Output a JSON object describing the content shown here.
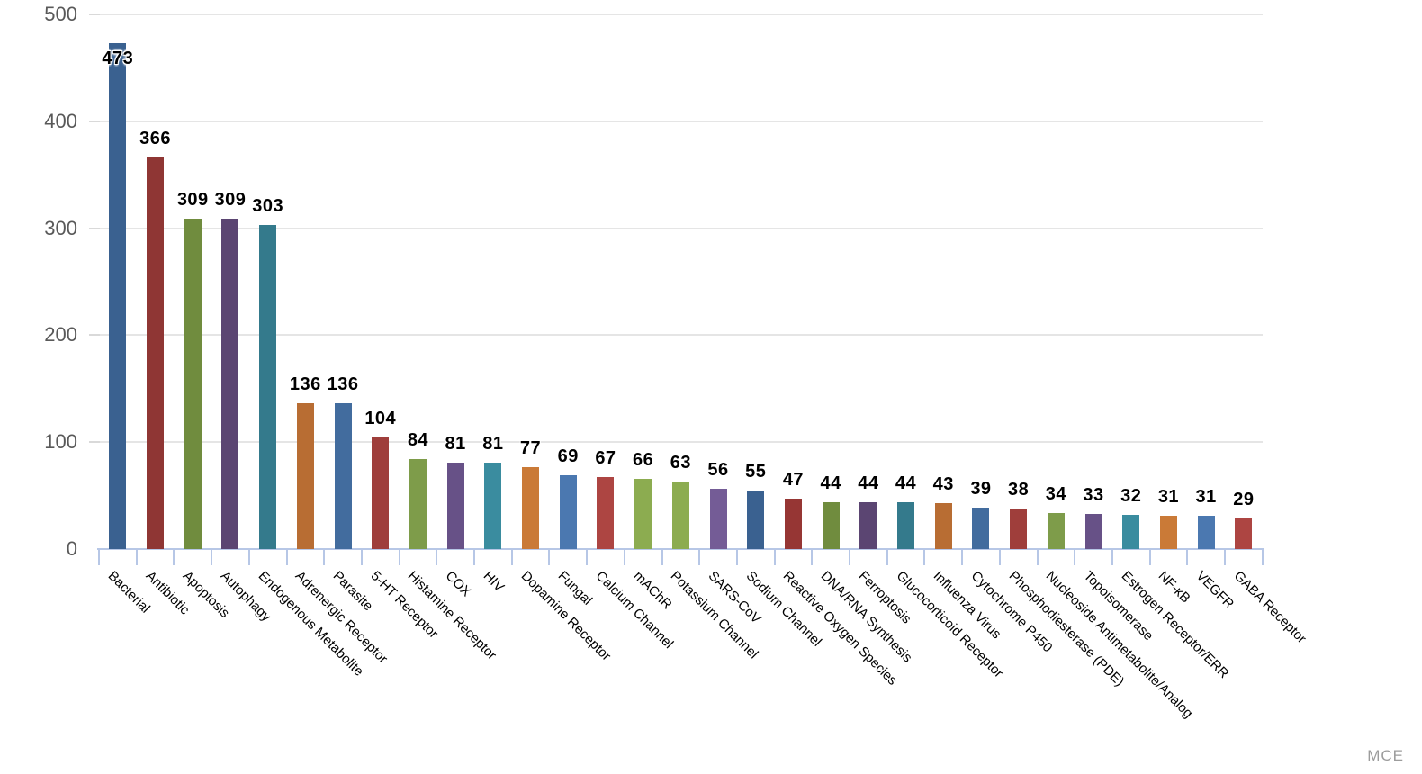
{
  "watermark": "MCE",
  "chart_data": {
    "type": "bar",
    "title": "",
    "xlabel": "",
    "ylabel": "",
    "legend": "none",
    "grid": "horizontal gridlines every 100 units",
    "ylim": [
      0,
      500
    ],
    "yticks": [
      0,
      100,
      200,
      300,
      400,
      500
    ],
    "value_labels": "bold numbers above each bar",
    "category_label_rotation_deg": 45,
    "categories": [
      "Bacterial",
      "Antibiotic",
      "Apoptosis",
      "Autophagy",
      "Endogenous Metabolite",
      "Adrenergic Receptor",
      "Parasite",
      "5-HT Receptor",
      "Histamine Receptor",
      "COX",
      "HIV",
      "Dopamine Receptor",
      "Fungal",
      "Calcium Channel",
      "mAChR",
      "Potassium Channel",
      "SARS-CoV",
      "Sodium Channel",
      "Reactive Oxygen Species",
      "DNA/RNA Synthesis",
      "Ferroptosis",
      "Glucocorticoid Receptor",
      "Influenza Virus",
      "Cytochrome P450",
      "Phosphodiesterase (PDE)",
      "Nucleoside Antimetabolite/Analog",
      "Topoisomerase",
      "Estrogen Receptor/ERR",
      "NF-κB",
      "VEGFR",
      "GABA Receptor"
    ],
    "values": [
      473,
      366,
      309,
      309,
      303,
      136,
      136,
      104,
      84,
      81,
      81,
      77,
      69,
      67,
      66,
      63,
      56,
      55,
      47,
      44,
      44,
      44,
      43,
      39,
      38,
      34,
      33,
      32,
      31,
      31,
      29
    ],
    "bar_colors": [
      "#3A6190",
      "#8F3634",
      "#708C3E",
      "#5B4572",
      "#347A8C",
      "#B86D33",
      "#426C9E",
      "#9F3E3B",
      "#7E9C4A",
      "#675187",
      "#3A8C9F",
      "#CA7A37",
      "#4B78B0",
      "#AD4542",
      "#8CAC50",
      "#8CAC50",
      "#745C96",
      "#3A6190",
      "#963634",
      "#708C3E",
      "#5B4572",
      "#347A8C",
      "#B86D33",
      "#426C9E",
      "#9F3E3B",
      "#7E9C4A",
      "#675187",
      "#3A8C9F",
      "#CA7A37",
      "#4B78B0",
      "#AD4542"
    ],
    "colors": {
      "background": "#FFFFFF",
      "gridline": "#E5E5E5",
      "ytick_dash": "#D9D9D9",
      "axis_line": "#B7C7E6",
      "ytick_label": "#595959",
      "value_label": "#000000",
      "category_label": "#000000",
      "watermark": "#9C9C9C"
    }
  }
}
